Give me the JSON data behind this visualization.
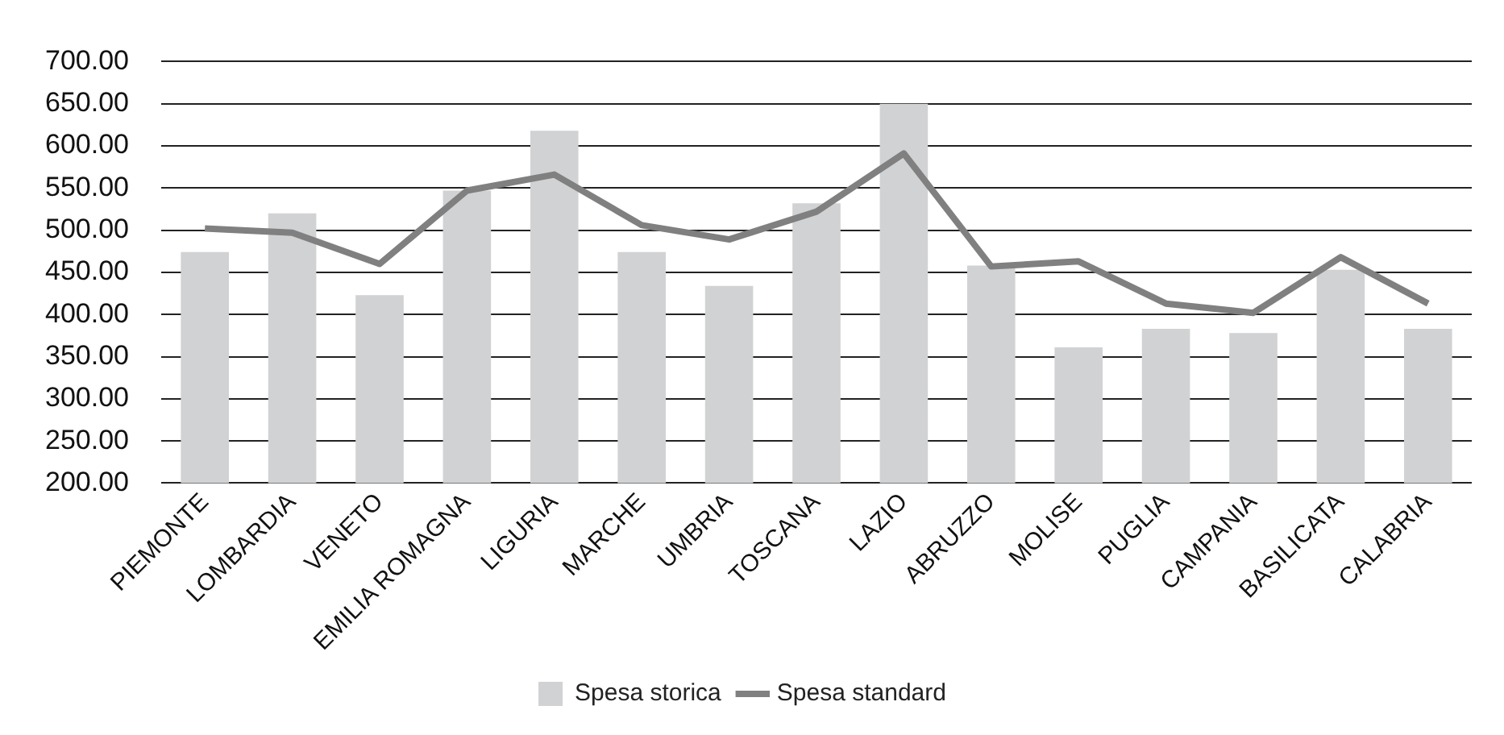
{
  "chart_data": {
    "type": "bar",
    "categories": [
      "PIEMONTE",
      "LOMBARDIA",
      "VENETO",
      "EMILIA ROMAGNA",
      "LIGURIA",
      "MARCHE",
      "UMBRIA",
      "TOSCANA",
      "LAZIO",
      "ABRUZZO",
      "MOLISE",
      "PUGLIA",
      "CAMPANIA",
      "BASILICATA",
      "CALABRIA"
    ],
    "series": [
      {
        "name": "Spesa storica",
        "color": "#d1d2d4",
        "values": [
          474,
          520,
          423,
          547,
          618,
          474,
          434,
          532,
          650,
          458,
          361,
          383,
          378,
          453,
          383
        ]
      },
      {
        "name": "Spesa standard",
        "type": "line",
        "color": "#808080",
        "values": [
          502,
          497,
          460,
          547,
          566,
          506,
          489,
          522,
          591,
          457,
          463,
          413,
          402,
          468,
          413
        ]
      }
    ],
    "ylim": [
      200,
      700
    ],
    "yticks": [
      {
        "value": 200,
        "label": "200.00"
      },
      {
        "value": 250,
        "label": "250.00"
      },
      {
        "value": 300,
        "label": "300.00"
      },
      {
        "value": 350,
        "label": "350.00"
      },
      {
        "value": 400,
        "label": "400.00"
      },
      {
        "value": 450,
        "label": "450.00"
      },
      {
        "value": 500,
        "label": "500.00"
      },
      {
        "value": 550,
        "label": "550.00"
      },
      {
        "value": 600,
        "label": "600.00"
      },
      {
        "value": 650,
        "label": "650.00"
      },
      {
        "value": 700,
        "label": "700.00"
      }
    ],
    "grid": "y",
    "legend": "bottom",
    "marker": "none"
  }
}
